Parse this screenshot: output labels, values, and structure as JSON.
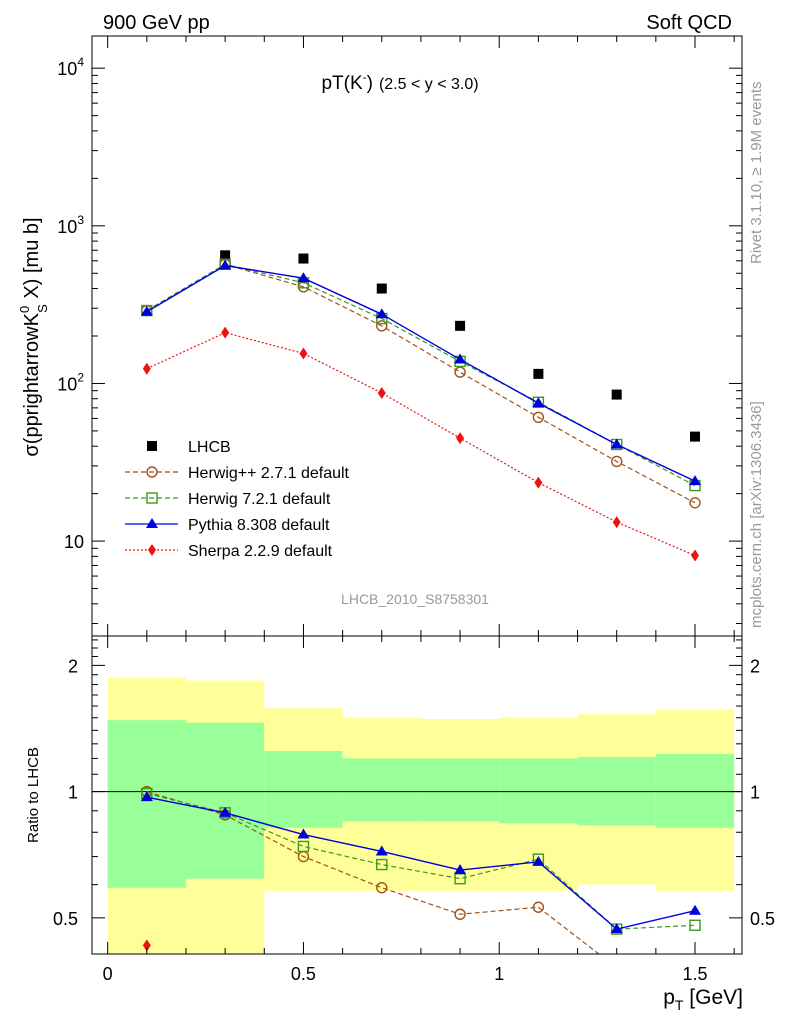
{
  "header": {
    "left": "900 GeV pp",
    "right": "Soft QCD"
  },
  "side_labels": {
    "rivet": "Rivet 3.1.10, ≥ 1.9M events",
    "source": "mcplots.cern.ch [arXiv:1306.3436]"
  },
  "chart_data": [
    {
      "type": "line",
      "panel": "main",
      "title_main": "pT(K",
      "title_sup": "-",
      "title_close": ")",
      "title_range": "(2.5 < y < 3.0)",
      "ylabel_main": "σ(pprightarrowK",
      "ylabel_sup": "0",
      "ylabel_sub": "S",
      "ylabel_tail": " X) [mu b]",
      "analysis_label": "LHCB_2010_S8758301",
      "xlim": [
        -0.04,
        1.62
      ],
      "ylim": [
        2.5,
        16000
      ],
      "yscale": "log",
      "y_tick_labels": [
        {
          "base": "10",
          "exp": "4",
          "value": 10000
        },
        {
          "base": "10",
          "exp": "3",
          "value": 1000
        },
        {
          "base": "10",
          "exp": "2",
          "value": 100
        },
        {
          "base": "10",
          "exp": "",
          "value": 10
        }
      ],
      "x": [
        0.1,
        0.3,
        0.5,
        0.7,
        0.9,
        1.1,
        1.3,
        1.5
      ],
      "series": [
        {
          "name": "LHCB",
          "color": "#000000",
          "marker": "square-filled",
          "line": "none",
          "values": [
            null,
            650,
            620,
            400,
            232,
            115,
            85,
            46
          ]
        },
        {
          "name": "Herwig++ 2.7.1 default",
          "color": "#a0521a",
          "marker": "circle-open",
          "line": "dashed",
          "values": [
            290,
            570,
            410,
            232,
            118,
            61,
            32,
            17.5
          ]
        },
        {
          "name": "Herwig 7.2.1 default",
          "color": "#3a9a1a",
          "marker": "square-open",
          "line": "dashed",
          "values": [
            290,
            570,
            435,
            258,
            138,
            76,
            41,
            22.5
          ]
        },
        {
          "name": "Pythia 8.308 default",
          "color": "#0000dd",
          "marker": "triangle-filled",
          "line": "solid",
          "values": [
            285,
            560,
            465,
            275,
            142,
            75,
            41,
            24
          ]
        },
        {
          "name": "Sherpa 2.2.9 default",
          "color": "#ee1111",
          "marker": "diamond-filled",
          "line": "dotted",
          "values": [
            124,
            210,
            155,
            87,
            45,
            23.5,
            13.2,
            8.1
          ]
        }
      ]
    },
    {
      "type": "line",
      "panel": "ratio",
      "ylabel": "Ratio to LHCB",
      "xlabel_main": "p",
      "xlabel_sub": "T",
      "xlabel_unit": " [GeV]",
      "xlim": [
        -0.04,
        1.62
      ],
      "ylim": [
        0.41,
        2.35
      ],
      "yscale": "log",
      "y_ticks": [
        0.5,
        1,
        2
      ],
      "y_tick_labels": [
        "0.5",
        "1",
        "2"
      ],
      "x_ticks": [
        0,
        0.5,
        1,
        1.5
      ],
      "x_tick_labels": [
        "0",
        "0.5",
        "1",
        "1.5"
      ],
      "x": [
        0.1,
        0.3,
        0.5,
        0.7,
        0.9,
        1.1,
        1.3,
        1.5
      ],
      "bands": {
        "bin_edges": [
          0,
          0.2,
          0.4,
          0.6,
          0.8,
          1.0,
          1.2,
          1.4,
          1.6
        ],
        "yellow_color": "#ffff99",
        "green_color": "#99ff99",
        "yellow_low": [
          0.3,
          0.3,
          0.58,
          0.58,
          0.58,
          0.58,
          0.6,
          0.58
        ],
        "yellow_high": [
          1.87,
          1.84,
          1.58,
          1.5,
          1.49,
          1.5,
          1.53,
          1.57
        ],
        "green_low": [
          0.59,
          0.62,
          0.82,
          0.85,
          0.85,
          0.84,
          0.83,
          0.82
        ],
        "green_high": [
          1.48,
          1.46,
          1.25,
          1.2,
          1.2,
          1.2,
          1.21,
          1.23
        ]
      },
      "series": [
        {
          "name": "Herwig++ 2.7.1 default",
          "color": "#a0521a",
          "marker": "circle-open",
          "line": "dashed",
          "values": [
            1.0,
            0.88,
            0.7,
            0.59,
            0.51,
            0.53,
            0.38,
            0.38
          ]
        },
        {
          "name": "Herwig 7.2.1 default",
          "color": "#3a9a1a",
          "marker": "square-open",
          "line": "dashed",
          "values": [
            0.99,
            0.89,
            0.74,
            0.67,
            0.62,
            0.69,
            0.47,
            0.48
          ]
        },
        {
          "name": "Pythia 8.308 default",
          "color": "#0000dd",
          "marker": "triangle-filled",
          "line": "solid",
          "values": [
            0.97,
            0.89,
            0.79,
            0.72,
            0.65,
            0.68,
            0.47,
            0.52
          ]
        },
        {
          "name": "Sherpa 2.2.9 default",
          "color": "#ee1111",
          "marker": "diamond-filled",
          "line": "dotted",
          "values": [
            0.43,
            null,
            null,
            null,
            null,
            null,
            null,
            null
          ]
        }
      ]
    }
  ]
}
